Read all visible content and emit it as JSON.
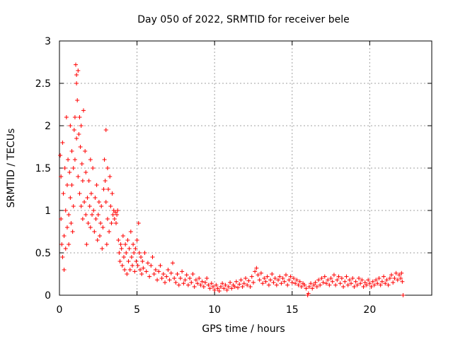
{
  "chart_data": {
    "type": "scatter",
    "title": "Day 050 of 2022, SRMTID for receiver bele",
    "xlabel": "GPS time / hours",
    "ylabel": "SRMTID / TECUs",
    "xlim": [
      0,
      24
    ],
    "ylim": [
      0,
      3
    ],
    "xticks": [
      0,
      5,
      10,
      15,
      20
    ],
    "yticks": [
      0,
      0.5,
      1,
      1.5,
      2,
      2.5,
      3
    ],
    "xtick_labels": [
      "0",
      "5",
      "10",
      "15",
      "20"
    ],
    "ytick_labels": [
      "0",
      "0.5",
      "1",
      "1.5",
      "2",
      "2.5",
      "3"
    ],
    "grid": true,
    "marker": "+",
    "color": "#ff0000",
    "series": [
      {
        "name": "SRMTID",
        "points": [
          [
            0.05,
            1.65
          ],
          [
            0.1,
            1.4
          ],
          [
            0.1,
            0.9
          ],
          [
            0.15,
            0.6
          ],
          [
            0.2,
            1.8
          ],
          [
            0.2,
            0.45
          ],
          [
            0.25,
            1.2
          ],
          [
            0.3,
            0.7
          ],
          [
            0.3,
            0.3
          ],
          [
            0.35,
            1.5
          ],
          [
            0.4,
            1.0
          ],
          [
            0.4,
            0.55
          ],
          [
            0.45,
            2.1
          ],
          [
            0.5,
            1.3
          ],
          [
            0.5,
            0.8
          ],
          [
            0.55,
            1.6
          ],
          [
            0.6,
            0.95
          ],
          [
            0.6,
            0.6
          ],
          [
            0.65,
            1.45
          ],
          [
            0.7,
            1.15
          ],
          [
            0.7,
            2.0
          ],
          [
            0.75,
            0.85
          ],
          [
            0.8,
            1.7
          ],
          [
            0.8,
            1.3
          ],
          [
            0.85,
            0.75
          ],
          [
            0.9,
            1.5
          ],
          [
            0.9,
            1.05
          ],
          [
            0.95,
            1.95
          ],
          [
            1.0,
            2.1
          ],
          [
            1.0,
            1.6
          ],
          [
            1.05,
            2.72
          ],
          [
            1.1,
            2.6
          ],
          [
            1.1,
            2.5
          ],
          [
            1.1,
            1.85
          ],
          [
            1.15,
            2.3
          ],
          [
            1.2,
            1.4
          ],
          [
            1.2,
            2.65
          ],
          [
            1.25,
            1.9
          ],
          [
            1.3,
            2.1
          ],
          [
            1.3,
            1.2
          ],
          [
            1.35,
            1.75
          ],
          [
            1.4,
            1.05
          ],
          [
            1.4,
            2.0
          ],
          [
            1.45,
            1.55
          ],
          [
            1.5,
            0.9
          ],
          [
            1.5,
            1.35
          ],
          [
            1.55,
            2.18
          ],
          [
            1.6,
            1.1
          ],
          [
            1.65,
            1.7
          ],
          [
            1.7,
            0.95
          ],
          [
            1.7,
            1.45
          ],
          [
            1.75,
            0.6
          ],
          [
            1.8,
            1.15
          ],
          [
            1.85,
            0.85
          ],
          [
            1.9,
            1.35
          ],
          [
            1.95,
            1.05
          ],
          [
            2.0,
            1.6
          ],
          [
            2.0,
            0.8
          ],
          [
            2.05,
            1.2
          ],
          [
            2.1,
            0.95
          ],
          [
            2.15,
            1.5
          ],
          [
            2.2,
            1.0
          ],
          [
            2.25,
            0.75
          ],
          [
            2.3,
            1.15
          ],
          [
            2.35,
            0.9
          ],
          [
            2.4,
            1.3
          ],
          [
            2.45,
            0.65
          ],
          [
            2.5,
            0.95
          ],
          [
            2.55,
            1.1
          ],
          [
            2.6,
            0.7
          ],
          [
            2.65,
            0.85
          ],
          [
            2.7,
            1.05
          ],
          [
            2.75,
            0.55
          ],
          [
            2.8,
            0.8
          ],
          [
            2.85,
            1.25
          ],
          [
            2.9,
            1.6
          ],
          [
            2.95,
            1.35
          ],
          [
            3.0,
            1.95
          ],
          [
            3.0,
            1.1
          ],
          [
            3.05,
            0.6
          ],
          [
            3.1,
            1.5
          ],
          [
            3.1,
            0.9
          ],
          [
            3.15,
            1.25
          ],
          [
            3.2,
            0.75
          ],
          [
            3.25,
            1.4
          ],
          [
            3.3,
            1.05
          ],
          [
            3.35,
            0.85
          ],
          [
            3.4,
            1.2
          ],
          [
            3.45,
            0.95
          ],
          [
            3.5,
            1.0
          ],
          [
            3.55,
            0.9
          ],
          [
            3.6,
            0.98
          ],
          [
            3.65,
            0.85
          ],
          [
            3.7,
            0.95
          ],
          [
            3.75,
            1.0
          ],
          [
            3.8,
            0.65
          ],
          [
            3.85,
            0.5
          ],
          [
            3.9,
            0.4
          ],
          [
            3.95,
            0.6
          ],
          [
            4.0,
            0.55
          ],
          [
            4.05,
            0.35
          ],
          [
            4.1,
            0.7
          ],
          [
            4.15,
            0.45
          ],
          [
            4.2,
            0.3
          ],
          [
            4.25,
            0.6
          ],
          [
            4.3,
            0.5
          ],
          [
            4.35,
            0.25
          ],
          [
            4.4,
            0.65
          ],
          [
            4.45,
            0.4
          ],
          [
            4.5,
            0.55
          ],
          [
            4.55,
            0.3
          ],
          [
            4.6,
            0.75
          ],
          [
            4.65,
            0.45
          ],
          [
            4.7,
            0.35
          ],
          [
            4.75,
            0.6
          ],
          [
            4.8,
            0.5
          ],
          [
            4.85,
            0.28
          ],
          [
            4.9,
            0.55
          ],
          [
            4.95,
            0.4
          ],
          [
            5.0,
            0.65
          ],
          [
            5.05,
            0.35
          ],
          [
            5.1,
            0.85
          ],
          [
            5.15,
            0.5
          ],
          [
            5.2,
            0.3
          ],
          [
            5.25,
            0.45
          ],
          [
            5.3,
            0.25
          ],
          [
            5.35,
            0.4
          ],
          [
            5.4,
            0.32
          ],
          [
            5.5,
            0.5
          ],
          [
            5.6,
            0.28
          ],
          [
            5.7,
            0.38
          ],
          [
            5.8,
            0.22
          ],
          [
            5.9,
            0.35
          ],
          [
            6.0,
            0.45
          ],
          [
            6.1,
            0.25
          ],
          [
            6.2,
            0.3
          ],
          [
            6.3,
            0.18
          ],
          [
            6.4,
            0.28
          ],
          [
            6.5,
            0.35
          ],
          [
            6.6,
            0.2
          ],
          [
            6.7,
            0.25
          ],
          [
            6.8,
            0.15
          ],
          [
            6.9,
            0.22
          ],
          [
            7.0,
            0.3
          ],
          [
            7.1,
            0.18
          ],
          [
            7.2,
            0.26
          ],
          [
            7.3,
            0.38
          ],
          [
            7.4,
            0.2
          ],
          [
            7.5,
            0.15
          ],
          [
            7.6,
            0.25
          ],
          [
            7.7,
            0.12
          ],
          [
            7.8,
            0.2
          ],
          [
            7.9,
            0.28
          ],
          [
            8.0,
            0.14
          ],
          [
            8.1,
            0.18
          ],
          [
            8.2,
            0.24
          ],
          [
            8.3,
            0.12
          ],
          [
            8.4,
            0.2
          ],
          [
            8.5,
            0.15
          ],
          [
            8.6,
            0.25
          ],
          [
            8.7,
            0.1
          ],
          [
            8.8,
            0.18
          ],
          [
            8.9,
            0.14
          ],
          [
            9.0,
            0.2
          ],
          [
            9.1,
            0.12
          ],
          [
            9.2,
            0.16
          ],
          [
            9.3,
            0.1
          ],
          [
            9.4,
            0.15
          ],
          [
            9.5,
            0.2
          ],
          [
            9.6,
            0.12
          ],
          [
            9.7,
            0.08
          ],
          [
            9.8,
            0.14
          ],
          [
            9.9,
            0.1
          ],
          [
            10.0,
            0.06
          ],
          [
            10.1,
            0.12
          ],
          [
            10.2,
            0.08
          ],
          [
            10.3,
            0.05
          ],
          [
            10.4,
            0.1
          ],
          [
            10.5,
            0.14
          ],
          [
            10.6,
            0.08
          ],
          [
            10.7,
            0.12
          ],
          [
            10.8,
            0.06
          ],
          [
            10.9,
            0.1
          ],
          [
            11.0,
            0.15
          ],
          [
            11.1,
            0.08
          ],
          [
            11.2,
            0.12
          ],
          [
            11.3,
            0.1
          ],
          [
            11.4,
            0.16
          ],
          [
            11.5,
            0.09
          ],
          [
            11.6,
            0.13
          ],
          [
            11.7,
            0.18
          ],
          [
            11.8,
            0.1
          ],
          [
            11.9,
            0.14
          ],
          [
            12.0,
            0.2
          ],
          [
            12.1,
            0.12
          ],
          [
            12.2,
            0.17
          ],
          [
            12.3,
            0.1
          ],
          [
            12.4,
            0.22
          ],
          [
            12.5,
            0.15
          ],
          [
            12.6,
            0.28
          ],
          [
            12.7,
            0.32
          ],
          [
            12.8,
            0.24
          ],
          [
            12.9,
            0.18
          ],
          [
            13.0,
            0.26
          ],
          [
            13.1,
            0.14
          ],
          [
            13.2,
            0.2
          ],
          [
            13.3,
            0.16
          ],
          [
            13.4,
            0.22
          ],
          [
            13.5,
            0.12
          ],
          [
            13.6,
            0.18
          ],
          [
            13.7,
            0.25
          ],
          [
            13.8,
            0.15
          ],
          [
            13.9,
            0.2
          ],
          [
            14.0,
            0.12
          ],
          [
            14.1,
            0.18
          ],
          [
            14.2,
            0.22
          ],
          [
            14.3,
            0.14
          ],
          [
            14.4,
            0.2
          ],
          [
            14.5,
            0.16
          ],
          [
            14.6,
            0.24
          ],
          [
            14.7,
            0.12
          ],
          [
            14.8,
            0.18
          ],
          [
            14.9,
            0.22
          ],
          [
            15.0,
            0.15
          ],
          [
            15.1,
            0.2
          ],
          [
            15.2,
            0.14
          ],
          [
            15.3,
            0.18
          ],
          [
            15.4,
            0.12
          ],
          [
            15.5,
            0.16
          ],
          [
            15.6,
            0.1
          ],
          [
            15.7,
            0.14
          ],
          [
            15.8,
            0.12
          ],
          [
            15.9,
            0.08
          ],
          [
            16.0,
            0.0
          ],
          [
            16.05,
            0.02
          ],
          [
            16.1,
            0.1
          ],
          [
            16.2,
            0.14
          ],
          [
            16.3,
            0.08
          ],
          [
            16.4,
            0.12
          ],
          [
            16.5,
            0.15
          ],
          [
            16.6,
            0.1
          ],
          [
            16.7,
            0.18
          ],
          [
            16.8,
            0.12
          ],
          [
            16.9,
            0.2
          ],
          [
            17.0,
            0.15
          ],
          [
            17.1,
            0.22
          ],
          [
            17.2,
            0.14
          ],
          [
            17.3,
            0.18
          ],
          [
            17.4,
            0.12
          ],
          [
            17.5,
            0.2
          ],
          [
            17.6,
            0.16
          ],
          [
            17.7,
            0.24
          ],
          [
            17.8,
            0.12
          ],
          [
            17.9,
            0.18
          ],
          [
            18.0,
            0.22
          ],
          [
            18.1,
            0.14
          ],
          [
            18.2,
            0.2
          ],
          [
            18.3,
            0.1
          ],
          [
            18.4,
            0.16
          ],
          [
            18.5,
            0.22
          ],
          [
            18.6,
            0.12
          ],
          [
            18.7,
            0.18
          ],
          [
            18.8,
            0.14
          ],
          [
            18.9,
            0.2
          ],
          [
            19.0,
            0.1
          ],
          [
            19.1,
            0.16
          ],
          [
            19.2,
            0.12
          ],
          [
            19.3,
            0.2
          ],
          [
            19.4,
            0.14
          ],
          [
            19.5,
            0.18
          ],
          [
            19.6,
            0.1
          ],
          [
            19.7,
            0.15
          ],
          [
            19.8,
            0.12
          ],
          [
            19.9,
            0.18
          ],
          [
            20.0,
            0.14
          ],
          [
            20.1,
            0.1
          ],
          [
            20.2,
            0.16
          ],
          [
            20.3,
            0.12
          ],
          [
            20.4,
            0.18
          ],
          [
            20.5,
            0.14
          ],
          [
            20.6,
            0.2
          ],
          [
            20.7,
            0.12
          ],
          [
            20.8,
            0.16
          ],
          [
            20.9,
            0.22
          ],
          [
            21.0,
            0.14
          ],
          [
            21.1,
            0.18
          ],
          [
            21.2,
            0.12
          ],
          [
            21.3,
            0.2
          ],
          [
            21.4,
            0.24
          ],
          [
            21.5,
            0.15
          ],
          [
            21.6,
            0.2
          ],
          [
            21.7,
            0.26
          ],
          [
            21.8,
            0.18
          ],
          [
            21.9,
            0.24
          ],
          [
            22.0,
            0.2
          ],
          [
            22.05,
            0.26
          ],
          [
            22.1,
            0.16
          ],
          [
            22.15,
            0.0
          ]
        ]
      }
    ]
  }
}
